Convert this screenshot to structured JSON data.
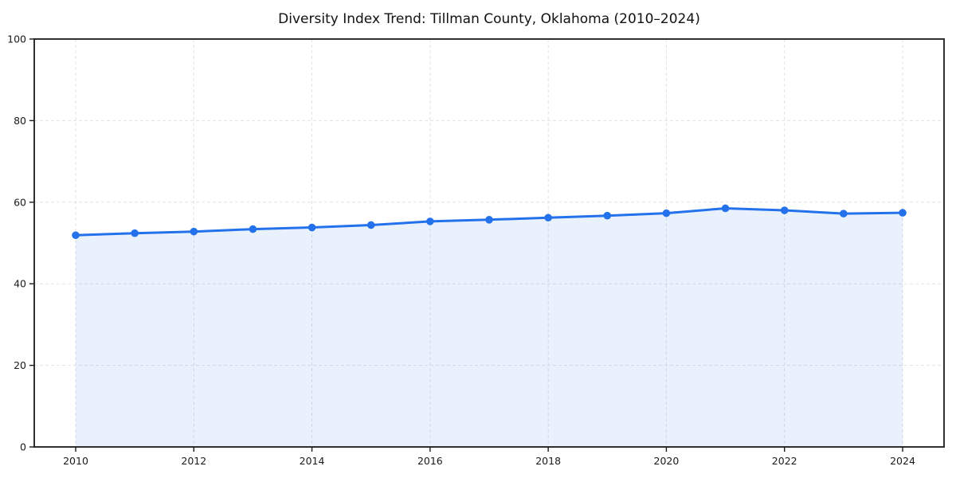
{
  "chart_data": {
    "type": "line",
    "title": "Diversity Index Trend: Tillman County, Oklahoma (2010–2024)",
    "xlabel": "",
    "ylabel": "",
    "x": [
      2010,
      2011,
      2012,
      2013,
      2014,
      2015,
      2016,
      2017,
      2018,
      2019,
      2020,
      2021,
      2022,
      2023,
      2024
    ],
    "series": [
      {
        "name": "Diversity Index",
        "values": [
          51.9,
          52.4,
          52.8,
          53.4,
          53.8,
          54.4,
          55.3,
          55.7,
          56.2,
          56.7,
          57.3,
          58.5,
          58.0,
          57.2,
          57.4
        ]
      }
    ],
    "ylim": [
      0,
      100
    ],
    "xticks": [
      2010,
      2012,
      2014,
      2016,
      2018,
      2020,
      2022,
      2024
    ],
    "yticks": [
      0,
      20,
      40,
      60,
      80,
      100
    ],
    "grid": true,
    "grid_style": "dashed",
    "legend_position": "none",
    "marker": "circle",
    "colors": {
      "line": "#2472eb",
      "marker": "#2472eb",
      "fill": "rgba(36, 114, 235, 0.10)",
      "grid": "#e2e2e2",
      "spine": "#1a1a1a",
      "tick_label": "#1a1a1a",
      "title": "#111111",
      "background": "#ffffff"
    }
  }
}
